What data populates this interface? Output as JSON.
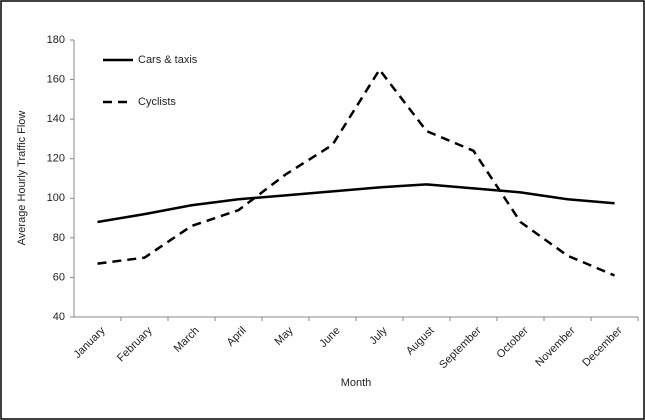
{
  "chart_data": {
    "type": "line",
    "x_label": "Month",
    "y_label": "Average Hourly Traffic Flow",
    "categories": [
      "January",
      "February",
      "March",
      "April",
      "May",
      "June",
      "July",
      "August",
      "September",
      "October",
      "November",
      "December"
    ],
    "series": [
      {
        "name": "Cars & taxis",
        "color": "#000000",
        "dash": false,
        "values": [
          88,
          92,
          96.5,
          99.5,
          101.5,
          103.5,
          105.5,
          107,
          105,
          103,
          99.5,
          97.5
        ]
      },
      {
        "name": "Cyclists",
        "color": "#000000",
        "dash": true,
        "values": [
          67,
          70,
          86,
          94,
          112,
          127,
          165,
          134,
          124,
          88,
          71,
          61
        ]
      }
    ],
    "ylim": [
      40,
      180
    ],
    "yticks": [
      40,
      60,
      80,
      100,
      120,
      140,
      160,
      180
    ],
    "grid": false,
    "legend": "top-left"
  }
}
